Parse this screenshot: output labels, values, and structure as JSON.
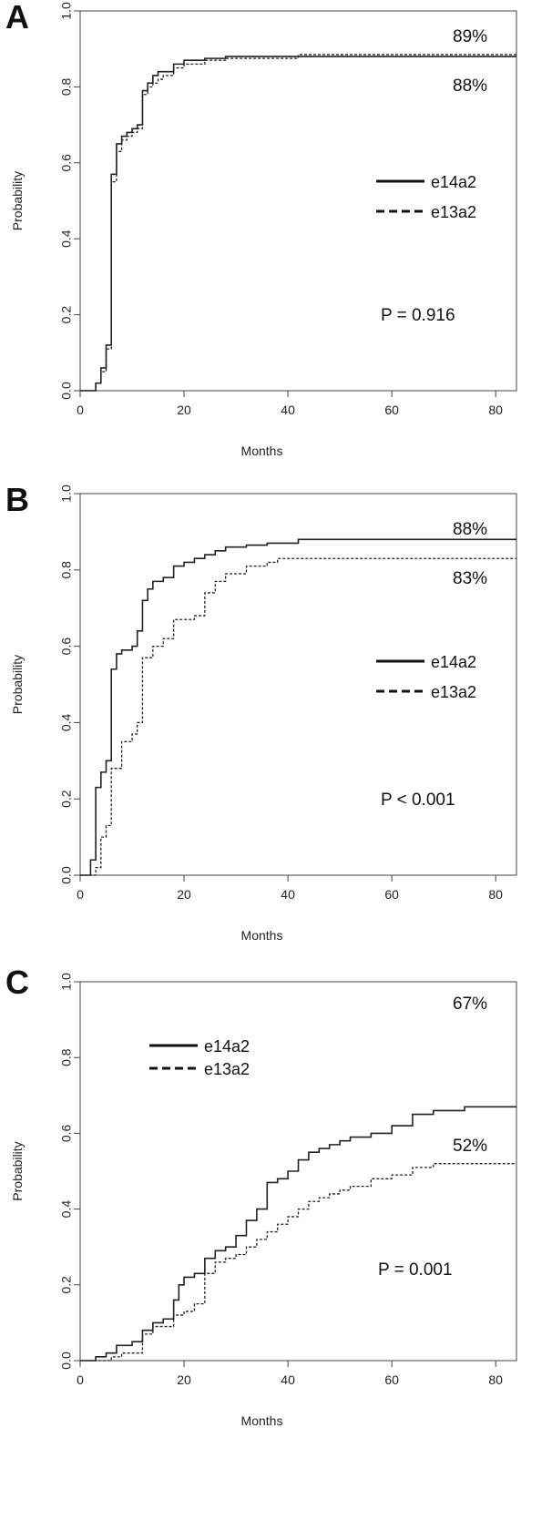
{
  "chart_data": [
    {
      "type": "line",
      "panel_label": "A",
      "xlabel": "Months",
      "ylabel": "Probability",
      "xlim": [
        0,
        84
      ],
      "ylim": [
        0,
        1
      ],
      "x_ticks": [
        "0",
        "20",
        "40",
        "60",
        "80"
      ],
      "y_ticks": [
        "0.0",
        "0.2",
        "0.4",
        "0.6",
        "0.8",
        "1.0"
      ],
      "legend_position": "middle-right",
      "p_value": "P = 0.916",
      "series": [
        {
          "name": "e14a2",
          "line_style": "solid",
          "end_label": "88%",
          "x": [
            0,
            2,
            3,
            4,
            5,
            6,
            7,
            8,
            9,
            10,
            11,
            12,
            13,
            14,
            15,
            16,
            18,
            20,
            24,
            28,
            42,
            84
          ],
          "y": [
            0,
            0,
            0.02,
            0.06,
            0.12,
            0.57,
            0.65,
            0.67,
            0.68,
            0.69,
            0.7,
            0.79,
            0.81,
            0.83,
            0.84,
            0.84,
            0.86,
            0.87,
            0.875,
            0.88,
            0.88,
            0.88
          ]
        },
        {
          "name": "e13a2",
          "line_style": "dashed",
          "end_label": "89%",
          "x": [
            0,
            2,
            3,
            4,
            5,
            6,
            7,
            8,
            9,
            10,
            11,
            12,
            13,
            14,
            15,
            16,
            18,
            20,
            24,
            28,
            42,
            84
          ],
          "y": [
            0,
            0,
            0.02,
            0.05,
            0.11,
            0.55,
            0.63,
            0.66,
            0.67,
            0.68,
            0.69,
            0.78,
            0.8,
            0.81,
            0.82,
            0.83,
            0.85,
            0.86,
            0.87,
            0.875,
            0.885,
            0.89
          ]
        }
      ]
    },
    {
      "type": "line",
      "panel_label": "B",
      "xlabel": "Months",
      "ylabel": "Probability",
      "xlim": [
        0,
        84
      ],
      "ylim": [
        0,
        1
      ],
      "x_ticks": [
        "0",
        "20",
        "40",
        "60",
        "80"
      ],
      "y_ticks": [
        "0.0",
        "0.2",
        "0.4",
        "0.6",
        "0.8",
        "1.0"
      ],
      "legend_position": "middle-right",
      "p_value": "P < 0.001",
      "series": [
        {
          "name": "e14a2",
          "line_style": "solid",
          "end_label": "88%",
          "x": [
            0,
            2,
            3,
            4,
            5,
            6,
            7,
            8,
            10,
            11,
            12,
            13,
            14,
            16,
            18,
            20,
            22,
            24,
            26,
            28,
            32,
            36,
            42,
            84
          ],
          "y": [
            0,
            0.04,
            0.23,
            0.27,
            0.3,
            0.54,
            0.58,
            0.59,
            0.6,
            0.64,
            0.72,
            0.75,
            0.77,
            0.78,
            0.81,
            0.82,
            0.83,
            0.84,
            0.85,
            0.86,
            0.865,
            0.87,
            0.88,
            0.88
          ]
        },
        {
          "name": "e13a2",
          "line_style": "dashed",
          "end_label": "83%",
          "x": [
            0,
            2,
            3,
            4,
            5,
            6,
            8,
            10,
            11,
            12,
            14,
            16,
            18,
            22,
            24,
            26,
            28,
            32,
            36,
            38,
            84
          ],
          "y": [
            0,
            0,
            0.02,
            0.1,
            0.13,
            0.28,
            0.35,
            0.37,
            0.4,
            0.57,
            0.6,
            0.62,
            0.67,
            0.68,
            0.74,
            0.77,
            0.79,
            0.81,
            0.82,
            0.83,
            0.83
          ]
        }
      ]
    },
    {
      "type": "line",
      "panel_label": "C",
      "xlabel": "Months",
      "ylabel": "Probability",
      "xlim": [
        0,
        84
      ],
      "ylim": [
        0,
        1
      ],
      "x_ticks": [
        "0",
        "20",
        "40",
        "60",
        "80"
      ],
      "y_ticks": [
        "0.0",
        "0.2",
        "0.4",
        "0.6",
        "0.8",
        "1.0"
      ],
      "legend_position": "top-left",
      "p_value": "P = 0.001",
      "series": [
        {
          "name": "e14a2",
          "line_style": "solid",
          "end_label": "67%",
          "x": [
            0,
            3,
            5,
            7,
            10,
            12,
            14,
            16,
            18,
            19,
            20,
            22,
            24,
            26,
            28,
            30,
            32,
            34,
            36,
            38,
            40,
            42,
            44,
            46,
            48,
            50,
            52,
            56,
            60,
            64,
            68,
            74,
            84
          ],
          "y": [
            0,
            0.01,
            0.02,
            0.04,
            0.05,
            0.08,
            0.1,
            0.11,
            0.16,
            0.2,
            0.22,
            0.23,
            0.27,
            0.29,
            0.3,
            0.33,
            0.37,
            0.4,
            0.47,
            0.48,
            0.5,
            0.53,
            0.55,
            0.56,
            0.57,
            0.58,
            0.59,
            0.6,
            0.62,
            0.65,
            0.66,
            0.67,
            0.67
          ]
        },
        {
          "name": "e13a2",
          "line_style": "dashed",
          "end_label": "52%",
          "x": [
            0,
            6,
            8,
            12,
            14,
            18,
            20,
            22,
            24,
            26,
            28,
            30,
            32,
            34,
            36,
            38,
            40,
            42,
            44,
            46,
            48,
            50,
            52,
            56,
            60,
            64,
            68,
            84
          ],
          "y": [
            0,
            0.01,
            0.02,
            0.07,
            0.09,
            0.12,
            0.13,
            0.15,
            0.23,
            0.26,
            0.27,
            0.28,
            0.3,
            0.32,
            0.34,
            0.36,
            0.38,
            0.4,
            0.42,
            0.43,
            0.44,
            0.45,
            0.46,
            0.48,
            0.49,
            0.51,
            0.52,
            0.52
          ]
        }
      ]
    }
  ]
}
